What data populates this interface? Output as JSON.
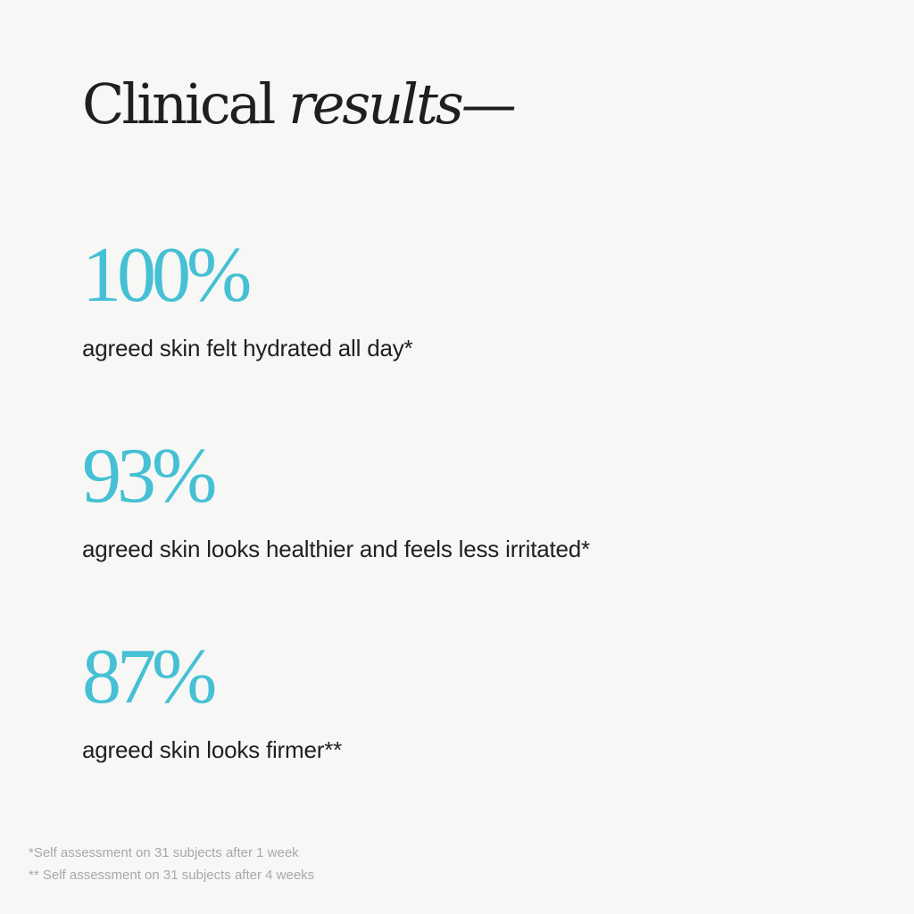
{
  "title": {
    "regular": "Clinical",
    "italic": "results—"
  },
  "stats": [
    {
      "value": "100%",
      "label": "agreed skin felt hydrated all day*"
    },
    {
      "value": "93%",
      "label": "agreed skin looks healthier and feels less irritated*"
    },
    {
      "value": "87%",
      "label": "agreed skin looks firmer**"
    }
  ],
  "footnotes": [
    "*Self assessment on 31 subjects after 1 week",
    "** Self assessment on 31 subjects after 4 weeks"
  ],
  "colors": {
    "accent": "#45c0d4",
    "text": "#1f1f1f",
    "background": "#f7f7f6"
  }
}
